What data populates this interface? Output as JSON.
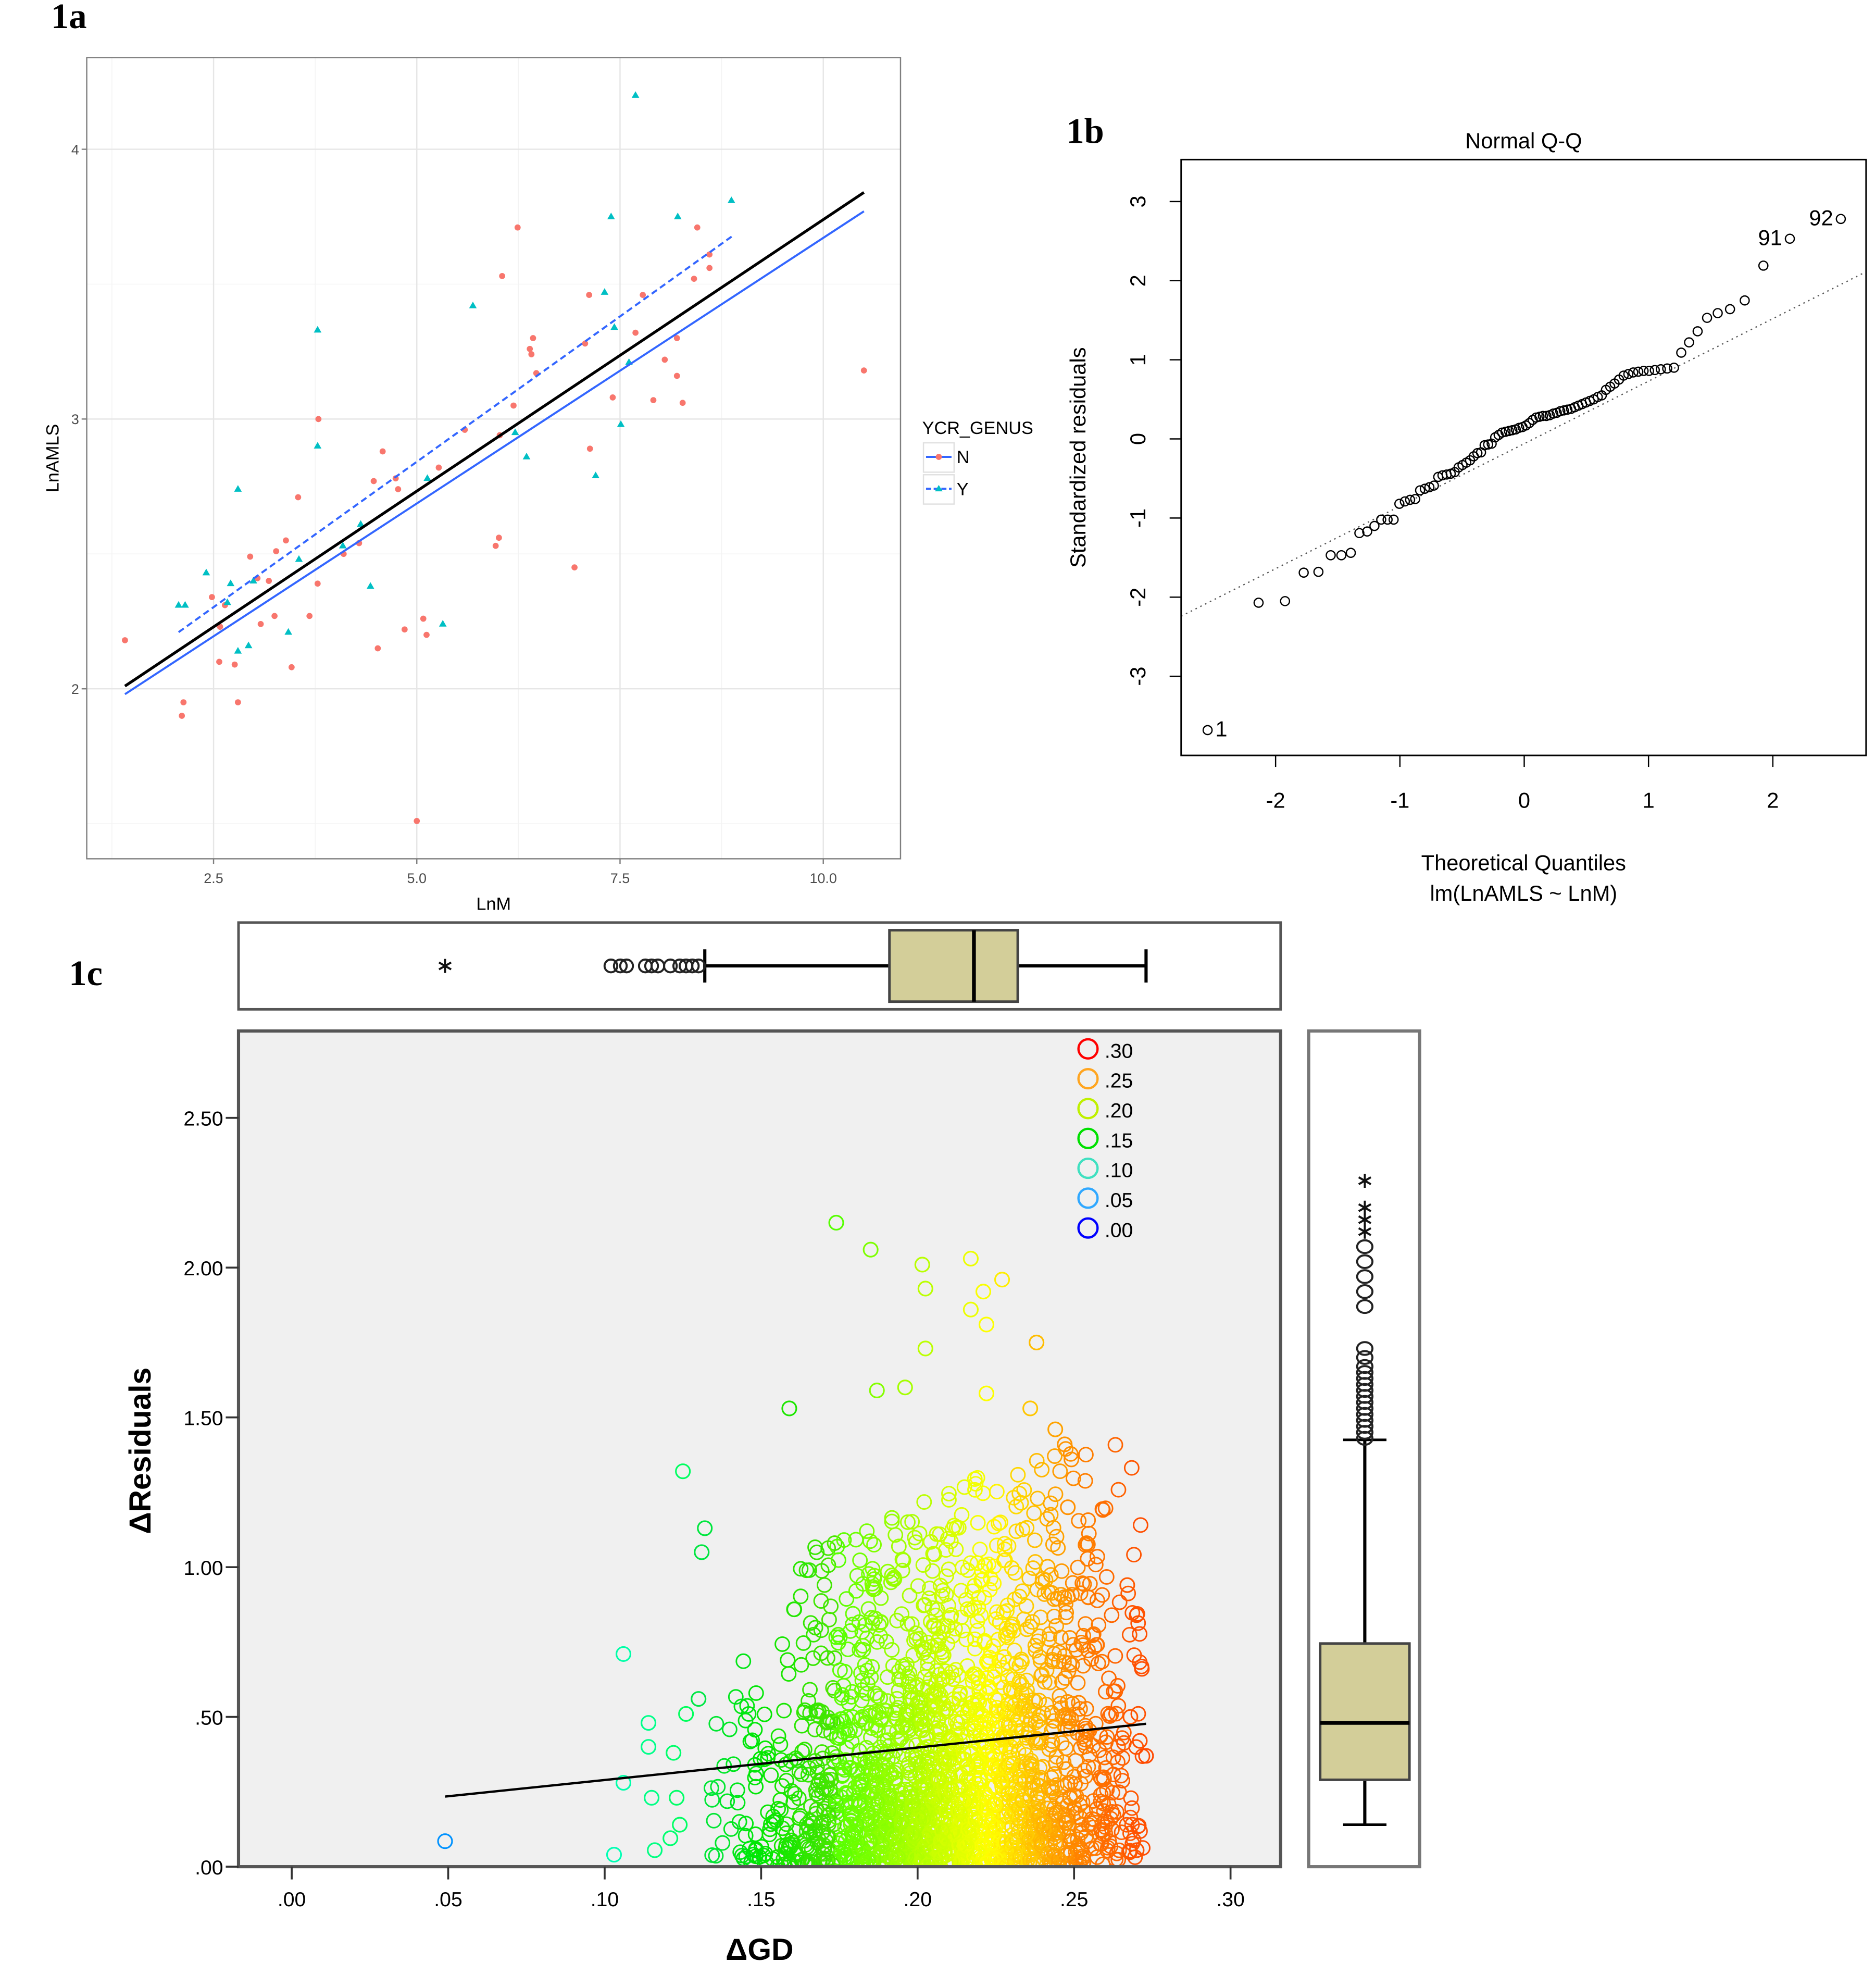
{
  "figure_labels": {
    "a": "1a",
    "b": "1b",
    "c": "1c"
  },
  "chart_data": [
    {
      "panel": "1a",
      "type": "scatter",
      "xlabel": "LnM",
      "ylabel": "LnAMLS",
      "xlim": [
        0.94,
        10.95
      ],
      "ylim": [
        1.37,
        4.34
      ],
      "xticks": [
        2.5,
        5.0,
        7.5,
        10.0
      ],
      "xtick_labels": [
        "2.5",
        "5.0",
        "7.5",
        "10.0"
      ],
      "yticks": [
        2,
        3,
        4
      ],
      "ytick_labels": [
        "2",
        "3",
        "4"
      ],
      "grid": true,
      "legend": {
        "title": "YCR_GENUS",
        "position": "right",
        "entries": [
          "N",
          "Y"
        ]
      },
      "series": [
        {
          "name": "N",
          "color": "#F8766D",
          "marker": "circle",
          "points": [
            [
              1.41,
              2.18
            ],
            [
              2.13,
              1.95
            ],
            [
              2.11,
              1.9
            ],
            [
              2.48,
              2.34
            ],
            [
              2.64,
              2.31
            ],
            [
              2.58,
              2.23
            ],
            [
              2.57,
              2.1
            ],
            [
              2.76,
              2.09
            ],
            [
              2.8,
              1.95
            ],
            [
              2.95,
              2.49
            ],
            [
              3.04,
              2.41
            ],
            [
              3.18,
              2.4
            ],
            [
              3.08,
              2.24
            ],
            [
              3.25,
              2.27
            ],
            [
              3.27,
              2.51
            ],
            [
              3.39,
              2.55
            ],
            [
              3.46,
              2.08
            ],
            [
              3.54,
              2.71
            ],
            [
              3.68,
              2.27
            ],
            [
              3.78,
              2.39
            ],
            [
              3.79,
              3.0
            ],
            [
              4.1,
              2.5
            ],
            [
              4.29,
              2.54
            ],
            [
              4.47,
              2.77
            ],
            [
              4.52,
              2.15
            ],
            [
              4.58,
              2.88
            ],
            [
              4.74,
              2.78
            ],
            [
              4.77,
              2.74
            ],
            [
              4.85,
              2.22
            ],
            [
              5.0,
              1.51
            ],
            [
              5.08,
              2.26
            ],
            [
              5.12,
              2.2
            ],
            [
              5.27,
              2.82
            ],
            [
              5.59,
              2.96
            ],
            [
              5.97,
              2.53
            ],
            [
              6.01,
              2.56
            ],
            [
              6.02,
              2.94
            ],
            [
              6.05,
              3.53
            ],
            [
              6.19,
              3.05
            ],
            [
              6.24,
              3.71
            ],
            [
              6.39,
              3.26
            ],
            [
              6.41,
              3.24
            ],
            [
              6.43,
              3.3
            ],
            [
              6.47,
              3.17
            ],
            [
              6.94,
              2.45
            ],
            [
              7.07,
              3.28
            ],
            [
              7.12,
              3.46
            ],
            [
              7.13,
              2.89
            ],
            [
              7.41,
              3.08
            ],
            [
              7.69,
              3.32
            ],
            [
              7.78,
              3.46
            ],
            [
              7.91,
              3.07
            ],
            [
              8.05,
              3.22
            ],
            [
              8.2,
              3.3
            ],
            [
              8.2,
              3.16
            ],
            [
              8.27,
              3.06
            ],
            [
              8.41,
              3.52
            ],
            [
              8.45,
              3.71
            ],
            [
              8.6,
              3.56
            ],
            [
              8.6,
              3.61
            ],
            [
              10.5,
              3.18
            ]
          ]
        },
        {
          "name": "Y",
          "color": "#00BFC4",
          "marker": "triangle",
          "points": [
            [
              2.07,
              2.31
            ],
            [
              2.15,
              2.31
            ],
            [
              2.41,
              2.43
            ],
            [
              2.67,
              2.32
            ],
            [
              2.71,
              2.39
            ],
            [
              2.8,
              2.74
            ],
            [
              2.8,
              2.14
            ],
            [
              2.93,
              2.16
            ],
            [
              2.99,
              2.4
            ],
            [
              3.42,
              2.21
            ],
            [
              3.55,
              2.48
            ],
            [
              3.78,
              3.33
            ],
            [
              3.78,
              2.9
            ],
            [
              4.09,
              2.53
            ],
            [
              4.31,
              2.61
            ],
            [
              4.43,
              2.38
            ],
            [
              5.13,
              2.78
            ],
            [
              5.32,
              2.24
            ],
            [
              5.69,
              3.42
            ],
            [
              6.21,
              2.95
            ],
            [
              6.35,
              2.86
            ],
            [
              7.2,
              2.79
            ],
            [
              7.31,
              3.47
            ],
            [
              7.39,
              3.75
            ],
            [
              7.43,
              3.34
            ],
            [
              7.51,
              2.98
            ],
            [
              7.61,
              3.21
            ],
            [
              7.69,
              4.2
            ],
            [
              8.21,
              3.75
            ],
            [
              8.87,
              3.81
            ]
          ]
        }
      ],
      "fit_lines": [
        {
          "group": "N",
          "color": "#3366FF",
          "style": "solid",
          "x": [
            1.41,
            10.5
          ],
          "y": [
            1.98,
            3.77
          ]
        },
        {
          "group": "Y",
          "color": "#3366FF",
          "style": "dashed",
          "x": [
            2.07,
            8.89
          ],
          "y": [
            2.21,
            3.68
          ]
        },
        {
          "group": "all",
          "color": "#000000",
          "style": "solid",
          "x": [
            1.41,
            10.5
          ],
          "y": [
            2.01,
            3.84
          ]
        }
      ]
    },
    {
      "panel": "1b",
      "type": "scatter",
      "title": "Normal Q-Q",
      "xlabel": "Theoretical Quantiles",
      "xsublabel": "lm(LnAMLS ~ LnM)",
      "ylabel": "Standardized residuals",
      "xlim": [
        -2.76,
        2.75
      ],
      "ylim": [
        -4.0,
        3.53
      ],
      "xticks": [
        -2,
        -1,
        0,
        1,
        2
      ],
      "xtick_labels": [
        "-2",
        "-1",
        "0",
        "1",
        "2"
      ],
      "yticks": [
        -3,
        -2,
        -1,
        0,
        1,
        2,
        3
      ],
      "ytick_labels": [
        "-3",
        "-2",
        "-1",
        "0",
        "1",
        "2",
        "3"
      ],
      "sorted_standardized_residuals": [
        -3.68,
        -2.07,
        -2.05,
        -1.69,
        -1.68,
        -1.47,
        -1.47,
        -1.44,
        -1.19,
        -1.17,
        -1.1,
        -1.02,
        -1.02,
        -1.02,
        -0.82,
        -0.79,
        -0.77,
        -0.76,
        -0.65,
        -0.63,
        -0.61,
        -0.59,
        -0.48,
        -0.46,
        -0.45,
        -0.44,
        -0.42,
        -0.36,
        -0.33,
        -0.3,
        -0.27,
        -0.22,
        -0.18,
        -0.17,
        -0.08,
        -0.07,
        -0.06,
        0.02,
        0.05,
        0.08,
        0.09,
        0.1,
        0.11,
        0.12,
        0.14,
        0.15,
        0.17,
        0.2,
        0.24,
        0.27,
        0.28,
        0.29,
        0.29,
        0.3,
        0.32,
        0.33,
        0.35,
        0.36,
        0.37,
        0.38,
        0.4,
        0.42,
        0.44,
        0.46,
        0.48,
        0.5,
        0.53,
        0.55,
        0.62,
        0.66,
        0.7,
        0.75,
        0.8,
        0.82,
        0.84,
        0.85,
        0.86,
        0.86,
        0.87,
        0.88,
        0.89,
        0.9,
        1.09,
        1.22,
        1.36,
        1.53,
        1.59,
        1.64,
        1.75,
        2.19,
        2.53,
        2.78
      ],
      "point_labels": [
        {
          "rank": 1,
          "label": "1"
        },
        {
          "rank": 91,
          "label": "91"
        },
        {
          "rank": 92,
          "label": "92"
        }
      ],
      "reference_line": {
        "intercept": -0.06,
        "slope": 0.79,
        "style": "dotted"
      }
    },
    {
      "panel": "1c",
      "type": "scatter",
      "xlabel": "ΔGD",
      "ylabel": "ΔResiduals",
      "xlim": [
        -0.017,
        0.316
      ],
      "ylim": [
        0,
        2.79
      ],
      "xticks": [
        0,
        0.05,
        0.1,
        0.15,
        0.2,
        0.25,
        0.3
      ],
      "xtick_labels": [
        ".00",
        ".05",
        ".10",
        ".15",
        ".20",
        ".25",
        ".30"
      ],
      "yticks": [
        0,
        0.5,
        1.0,
        1.5,
        2.0,
        2.5
      ],
      "ytick_labels": [
        ".00",
        ".50",
        "1.00",
        "1.50",
        "2.00",
        "2.50"
      ],
      "background": "#F0F0F0",
      "color_legend": {
        "position": "top-right",
        "entries": [
          {
            "value": 0.3,
            "label": ".30",
            "color": "#FF0000"
          },
          {
            "value": 0.25,
            "label": ".25",
            "color": "#FFA520"
          },
          {
            "value": 0.2,
            "label": ".20",
            "color": "#BFF000"
          },
          {
            "value": 0.15,
            "label": ".15",
            "color": "#00E000"
          },
          {
            "value": 0.1,
            "label": ".10",
            "color": "#40E0C0"
          },
          {
            "value": 0.05,
            "label": ".05",
            "color": "#30A8FF"
          },
          {
            "value": 0.0,
            "label": ".00",
            "color": "#0000FF"
          }
        ]
      },
      "points": [
        [
          0.174,
          2.15
        ],
        [
          0.185,
          2.06
        ],
        [
          0.2015,
          2.01
        ],
        [
          0.2025,
          1.93
        ],
        [
          0.217,
          2.03
        ],
        [
          0.227,
          1.96
        ],
        [
          0.221,
          1.92
        ],
        [
          0.217,
          1.86
        ],
        [
          0.222,
          1.81
        ],
        [
          0.2025,
          1.73
        ],
        [
          0.238,
          1.75
        ],
        [
          0.222,
          1.58
        ],
        [
          0.159,
          1.53
        ],
        [
          0.125,
          1.32
        ],
        [
          0.132,
          1.13
        ],
        [
          0.131,
          1.05
        ],
        [
          0.106,
          0.71
        ],
        [
          0.049,
          0.085
        ],
        [
          0.103,
          0.04
        ],
        [
          0.114,
          0.48
        ],
        [
          0.114,
          0.4
        ],
        [
          0.122,
          0.38
        ],
        [
          0.106,
          0.28
        ],
        [
          0.115,
          0.23
        ],
        [
          0.123,
          0.23
        ],
        [
          0.116,
          0.055
        ],
        [
          0.121,
          0.095
        ],
        [
          0.13,
          0.56
        ],
        [
          0.126,
          0.51
        ],
        [
          0.124,
          0.14
        ],
        [
          0.267,
          0.94
        ],
        [
          0.268,
          0.5
        ],
        [
          0.271,
          0.42
        ],
        [
          0.273,
          0.37
        ],
        [
          0.27,
          0.055
        ],
        [
          0.254,
          1.08
        ],
        [
          0.248,
          1.2
        ],
        [
          0.247,
          1.41
        ],
        [
          0.244,
          1.46
        ],
        [
          0.236,
          1.53
        ],
        [
          0.196,
          1.6
        ],
        [
          0.187,
          1.59
        ]
      ],
      "fit_line": {
        "x": [
          0.049,
          0.273
        ],
        "y": [
          0.234,
          0.477
        ],
        "color": "#000000"
      },
      "box_color": "#D3CE99",
      "marginal_x_boxplot": {
        "whisker_low": 0.132,
        "q1": 0.191,
        "median": 0.218,
        "q3": 0.232,
        "whisker_high": 0.273,
        "outliers": [
          0.102,
          0.105,
          0.107,
          0.113,
          0.115,
          0.117,
          0.121,
          0.124,
          0.126,
          0.128,
          0.13
        ],
        "extremes": [
          0.049
        ]
      },
      "marginal_y_boxplot": {
        "whisker_low": 0.14,
        "q1": 0.29,
        "median": 0.48,
        "q3": 0.745,
        "whisker_high": 1.425,
        "outliers": [
          1.43,
          1.45,
          1.47,
          1.49,
          1.51,
          1.53,
          1.55,
          1.57,
          1.59,
          1.61,
          1.63,
          1.65,
          1.67,
          1.7,
          1.73,
          1.87,
          1.92,
          1.97,
          2.02,
          2.07
        ],
        "extremes": [
          2.12,
          2.16,
          2.2,
          2.29
        ]
      }
    }
  ]
}
